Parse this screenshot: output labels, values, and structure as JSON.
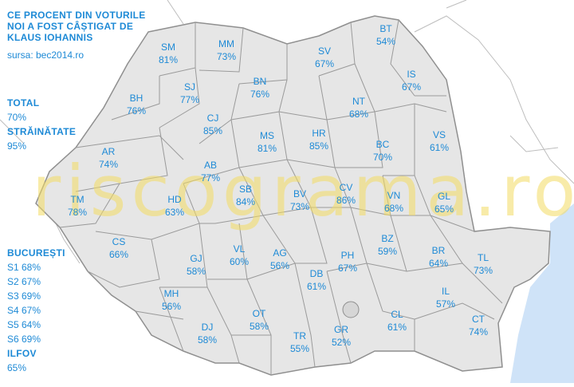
{
  "header": {
    "title_lines": [
      "CE PROCENT DIN VOTURILE",
      "NOI A FOST CÂȘTIGAT DE",
      "KLAUS IOHANNIS"
    ],
    "source": "sursa: bec2014.ro"
  },
  "totals": {
    "total_label": "TOTAL",
    "total_value": "70%",
    "abroad_label": "STRĂINĂTATE",
    "abroad_value": "95%"
  },
  "bucharest": {
    "label": "BUCUREȘTI",
    "sectors": [
      "S1 68%",
      "S2 67%",
      "S3 69%",
      "S4 67%",
      "S5 64%",
      "S6 69%"
    ],
    "ilfov_label": "ILFOV",
    "ilfov_value": "65%"
  },
  "watermark": "riscograma.ro",
  "colors": {
    "land": "#e6e6e6",
    "border": "#8f8f8f",
    "sea": "#cfe3f8",
    "text": "#1e8ad6",
    "watermark": "#f4dc62"
  },
  "counties": [
    {
      "code": "BT",
      "value": "54%"
    },
    {
      "code": "SM",
      "value": "81%"
    },
    {
      "code": "MM",
      "value": "73%"
    },
    {
      "code": "SV",
      "value": "67%"
    },
    {
      "code": "IS",
      "value": "67%"
    },
    {
      "code": "SJ",
      "value": "77%"
    },
    {
      "code": "BN",
      "value": "76%"
    },
    {
      "code": "BH",
      "value": "76%"
    },
    {
      "code": "NT",
      "value": "68%"
    },
    {
      "code": "CJ",
      "value": "85%"
    },
    {
      "code": "MS",
      "value": "81%"
    },
    {
      "code": "HR",
      "value": "85%"
    },
    {
      "code": "VS",
      "value": "61%"
    },
    {
      "code": "AR",
      "value": "74%"
    },
    {
      "code": "BC",
      "value": "70%"
    },
    {
      "code": "AB",
      "value": "77%"
    },
    {
      "code": "TM",
      "value": "78%"
    },
    {
      "code": "HD",
      "value": "63%"
    },
    {
      "code": "SB",
      "value": "84%"
    },
    {
      "code": "BV",
      "value": "73%"
    },
    {
      "code": "CV",
      "value": "86%"
    },
    {
      "code": "VN",
      "value": "68%"
    },
    {
      "code": "GL",
      "value": "65%"
    },
    {
      "code": "CS",
      "value": "66%"
    },
    {
      "code": "BZ",
      "value": "59%"
    },
    {
      "code": "BR",
      "value": "64%"
    },
    {
      "code": "TL",
      "value": "73%"
    },
    {
      "code": "GJ",
      "value": "58%"
    },
    {
      "code": "VL",
      "value": "60%"
    },
    {
      "code": "AG",
      "value": "56%"
    },
    {
      "code": "PH",
      "value": "67%"
    },
    {
      "code": "DB",
      "value": "61%"
    },
    {
      "code": "IL",
      "value": "57%"
    },
    {
      "code": "MH",
      "value": "56%"
    },
    {
      "code": "OT",
      "value": "58%"
    },
    {
      "code": "CT",
      "value": "74%"
    },
    {
      "code": "DJ",
      "value": "58%"
    },
    {
      "code": "CL",
      "value": "61%"
    },
    {
      "code": "TR",
      "value": "55%"
    },
    {
      "code": "GR",
      "value": "52%"
    }
  ]
}
